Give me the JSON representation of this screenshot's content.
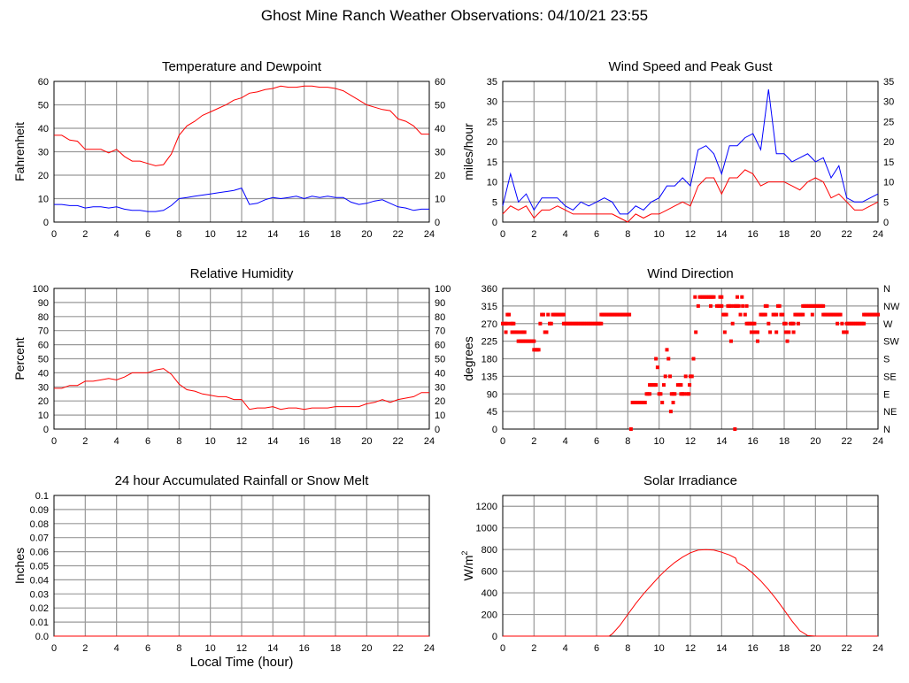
{
  "title": "Ghost Mine Ranch Weather Observations: 04/10/21 23:55",
  "x_axis_label": "Local Time (hour)",
  "colors": {
    "red": "#ff0000",
    "blue": "#0000ff",
    "grid": "#999999"
  },
  "chart_data": [
    {
      "id": "temp",
      "type": "line",
      "title": "Temperature and Dewpoint",
      "ylabel": "Fahrenheit",
      "xlim": [
        0,
        24
      ],
      "ylim": [
        0,
        60
      ],
      "xticks": [
        0,
        2,
        4,
        6,
        8,
        10,
        12,
        14,
        16,
        18,
        20,
        22,
        24
      ],
      "yticks": [
        0,
        10,
        20,
        30,
        40,
        50,
        60
      ],
      "right_ticks": [
        "0",
        "10",
        "20",
        "30",
        "40",
        "50",
        "60"
      ],
      "grid": true,
      "x": [
        0,
        0.5,
        1,
        1.5,
        2,
        2.5,
        3,
        3.5,
        4,
        4.5,
        5,
        5.5,
        6,
        6.5,
        7,
        7.5,
        8,
        8.5,
        9,
        9.5,
        10,
        10.5,
        11,
        11.5,
        12,
        12.5,
        13,
        13.5,
        14,
        14.5,
        15,
        15.5,
        16,
        16.5,
        17,
        17.5,
        18,
        18.5,
        19,
        19.5,
        20,
        20.5,
        21,
        21.5,
        22,
        22.5,
        23,
        23.5,
        24
      ],
      "series": [
        {
          "color": "#ff0000",
          "values": [
            37,
            37,
            35,
            34.5,
            31,
            31,
            31,
            29.5,
            31,
            28,
            26,
            26,
            25,
            24,
            24.5,
            29,
            37,
            41,
            43,
            45.5,
            47,
            48.5,
            50,
            52,
            53,
            55,
            55.5,
            56.5,
            57,
            58,
            57.5,
            57.5,
            58,
            58,
            57.5,
            57.5,
            57,
            56,
            54,
            52,
            50,
            49,
            48,
            47.5,
            44,
            43,
            41,
            37.5,
            37.5
          ]
        },
        {
          "color": "#0000ff",
          "values": [
            7.5,
            7.5,
            7,
            7,
            6,
            6.5,
            6.5,
            6,
            6.5,
            5.5,
            5,
            5,
            4.5,
            4.5,
            5,
            7,
            10,
            10.5,
            11,
            11.5,
            12,
            12.5,
            13,
            13.5,
            14.5,
            7.5,
            8,
            9.5,
            10.5,
            10,
            10.5,
            11,
            10,
            11,
            10.5,
            11,
            10.5,
            10.5,
            8.5,
            7.5,
            8,
            9,
            9.5,
            8,
            6.5,
            6,
            5,
            5.5,
            5.5
          ]
        }
      ]
    },
    {
      "id": "wind",
      "type": "line",
      "title": "Wind Speed and Peak Gust",
      "ylabel": "miles/hour",
      "xlim": [
        0,
        24
      ],
      "ylim": [
        0,
        35
      ],
      "xticks": [
        0,
        2,
        4,
        6,
        8,
        10,
        12,
        14,
        16,
        18,
        20,
        22,
        24
      ],
      "yticks": [
        0,
        5,
        10,
        15,
        20,
        25,
        30,
        35
      ],
      "right_ticks": [
        "0",
        "5",
        "10",
        "15",
        "20",
        "25",
        "30",
        "35"
      ],
      "grid": true,
      "x": [
        0,
        0.5,
        1,
        1.5,
        2,
        2.5,
        3,
        3.5,
        4,
        4.5,
        5,
        5.5,
        6,
        6.5,
        7,
        7.5,
        8,
        8.5,
        9,
        9.5,
        10,
        10.5,
        11,
        11.5,
        12,
        12.5,
        13,
        13.5,
        14,
        14.5,
        15,
        15.5,
        16,
        16.5,
        17,
        17.5,
        18,
        18.5,
        19,
        19.5,
        20,
        20.5,
        21,
        21.5,
        22,
        22.5,
        23,
        23.5,
        24
      ],
      "series": [
        {
          "color": "#0000ff",
          "values": [
            4,
            12,
            5,
            7,
            3,
            6,
            6,
            6,
            4,
            3,
            5,
            4,
            5,
            6,
            5,
            2,
            2,
            4,
            3,
            5,
            6,
            9,
            9,
            11,
            9,
            18,
            19,
            17,
            12,
            19,
            19,
            21,
            22,
            18,
            33,
            17,
            17,
            15,
            16,
            17,
            15,
            16,
            11,
            14,
            6,
            5,
            5,
            6,
            7
          ]
        },
        {
          "color": "#ff0000",
          "values": [
            2,
            4,
            3,
            4,
            1,
            3,
            3,
            4,
            3,
            2,
            2,
            2,
            2,
            2,
            2,
            1,
            0,
            2,
            1,
            2,
            2,
            3,
            4,
            5,
            4,
            9,
            11,
            11,
            7,
            11,
            11,
            13,
            12,
            9,
            10,
            10,
            10,
            9,
            8,
            10,
            11,
            10,
            6,
            7,
            5,
            3,
            3,
            4,
            5
          ]
        }
      ]
    },
    {
      "id": "rh",
      "type": "line",
      "title": "Relative Humidity",
      "ylabel": "Percent",
      "xlim": [
        0,
        24
      ],
      "ylim": [
        0,
        100
      ],
      "xticks": [
        0,
        2,
        4,
        6,
        8,
        10,
        12,
        14,
        16,
        18,
        20,
        22,
        24
      ],
      "yticks": [
        0,
        10,
        20,
        30,
        40,
        50,
        60,
        70,
        80,
        90,
        100
      ],
      "right_ticks": [
        "0",
        "10",
        "20",
        "30",
        "40",
        "50",
        "60",
        "70",
        "80",
        "90",
        "100"
      ],
      "grid": true,
      "x": [
        0,
        0.5,
        1,
        1.5,
        2,
        2.5,
        3,
        3.5,
        4,
        4.5,
        5,
        5.5,
        6,
        6.5,
        7,
        7.5,
        8,
        8.5,
        9,
        9.5,
        10,
        10.5,
        11,
        11.5,
        12,
        12.5,
        13,
        13.5,
        14,
        14.5,
        15,
        15.5,
        16,
        16.5,
        17,
        17.5,
        18,
        18.5,
        19,
        19.5,
        20,
        20.5,
        21,
        21.5,
        22,
        22.5,
        23,
        23.5,
        24
      ],
      "series": [
        {
          "color": "#ff0000",
          "values": [
            29,
            29,
            31,
            31,
            34,
            34,
            35,
            36,
            35,
            37,
            40,
            40,
            40,
            42,
            43,
            39,
            32,
            28,
            27,
            25,
            24,
            23,
            23,
            21,
            21,
            14,
            15,
            15,
            16,
            14,
            15,
            15,
            14,
            15,
            15,
            15,
            16,
            16,
            16,
            16,
            18,
            19,
            21,
            19,
            21,
            22,
            23,
            26,
            26
          ]
        }
      ]
    },
    {
      "id": "dir",
      "type": "scatter",
      "title": "Wind Direction",
      "ylabel": "degrees",
      "xlim": [
        0,
        24
      ],
      "ylim": [
        0,
        360
      ],
      "xticks": [
        0,
        2,
        4,
        6,
        8,
        10,
        12,
        14,
        16,
        18,
        20,
        22,
        24
      ],
      "yticks": [
        0,
        45,
        90,
        135,
        180,
        225,
        270,
        315,
        360
      ],
      "right_ticks": [
        "N",
        "NE",
        "E",
        "SE",
        "S",
        "SW",
        "W",
        "NW",
        "N"
      ],
      "grid": true,
      "color": "#ff0000",
      "runs": [
        [
          0,
          0.3,
          270
        ],
        [
          0.2,
          0.2,
          248
        ],
        [
          0.3,
          0.4,
          293
        ],
        [
          0.5,
          0.7,
          270
        ],
        [
          0.6,
          1.0,
          248
        ],
        [
          1.0,
          2.0,
          225
        ],
        [
          1.2,
          1.4,
          248
        ],
        [
          2.0,
          2.3,
          203
        ],
        [
          2.4,
          2.4,
          270
        ],
        [
          2.5,
          2.6,
          293
        ],
        [
          2.7,
          2.8,
          248
        ],
        [
          2.9,
          2.9,
          293
        ],
        [
          3.0,
          3.1,
          270
        ],
        [
          3.2,
          3.9,
          293
        ],
        [
          3.9,
          6.3,
          270
        ],
        [
          6.3,
          8.1,
          293
        ],
        [
          8.2,
          8.2,
          0
        ],
        [
          8.3,
          9.1,
          68
        ],
        [
          9.2,
          9.4,
          90
        ],
        [
          9.4,
          9.8,
          113
        ],
        [
          9.8,
          9.8,
          180
        ],
        [
          9.9,
          9.95,
          158
        ],
        [
          10.0,
          10.1,
          90
        ],
        [
          10.2,
          10.2,
          68
        ],
        [
          10.3,
          10.3,
          113
        ],
        [
          10.4,
          10.4,
          135
        ],
        [
          10.5,
          10.5,
          203
        ],
        [
          10.6,
          10.6,
          180
        ],
        [
          10.7,
          10.7,
          135
        ],
        [
          10.75,
          10.75,
          45
        ],
        [
          10.8,
          11.0,
          90
        ],
        [
          10.9,
          10.9,
          68
        ],
        [
          11.2,
          11.4,
          113
        ],
        [
          11.4,
          11.6,
          90
        ],
        [
          11.7,
          11.7,
          135
        ],
        [
          11.8,
          11.9,
          90
        ],
        [
          11.95,
          11.95,
          113
        ],
        [
          12.0,
          12.1,
          135
        ],
        [
          12.2,
          12.2,
          180
        ],
        [
          12.3,
          12.3,
          338
        ],
        [
          12.35,
          12.35,
          248
        ],
        [
          12.5,
          12.5,
          315
        ],
        [
          12.6,
          13.5,
          338
        ],
        [
          13.3,
          13.3,
          315
        ],
        [
          13.7,
          13.9,
          315
        ],
        [
          13.9,
          14.0,
          338
        ],
        [
          14.0,
          14.0,
          315
        ],
        [
          14.1,
          14.3,
          293
        ],
        [
          14.2,
          14.2,
          248
        ],
        [
          14.4,
          14.6,
          315
        ],
        [
          14.6,
          14.6,
          225
        ],
        [
          14.7,
          14.7,
          270
        ],
        [
          14.8,
          15.1,
          315
        ],
        [
          14.85,
          14.85,
          0
        ],
        [
          15.0,
          15.0,
          338
        ],
        [
          15.2,
          15.2,
          293
        ],
        [
          15.3,
          15.3,
          338
        ],
        [
          15.35,
          15.35,
          315
        ],
        [
          15.5,
          15.5,
          293
        ],
        [
          15.6,
          15.6,
          315
        ],
        [
          15.6,
          15.9,
          270
        ],
        [
          15.9,
          16.3,
          248
        ],
        [
          16.0,
          16.1,
          270
        ],
        [
          16.3,
          16.3,
          225
        ],
        [
          16.5,
          16.8,
          293
        ],
        [
          16.8,
          16.9,
          315
        ],
        [
          17.0,
          17.0,
          270
        ],
        [
          17.1,
          17.1,
          248
        ],
        [
          17.3,
          17.5,
          293
        ],
        [
          17.5,
          17.5,
          248
        ],
        [
          17.6,
          17.7,
          315
        ],
        [
          17.8,
          17.9,
          293
        ],
        [
          18.0,
          18.1,
          270
        ],
        [
          18.1,
          18.3,
          248
        ],
        [
          18.2,
          18.2,
          225
        ],
        [
          18.4,
          18.6,
          270
        ],
        [
          18.6,
          18.6,
          248
        ],
        [
          18.7,
          18.9,
          293
        ],
        [
          18.9,
          18.9,
          270
        ],
        [
          19.0,
          19.2,
          293
        ],
        [
          19.2,
          20.5,
          315
        ],
        [
          19.8,
          19.8,
          293
        ],
        [
          20.5,
          21.6,
          293
        ],
        [
          21.4,
          21.4,
          270
        ],
        [
          21.7,
          21.7,
          270
        ],
        [
          21.8,
          22.0,
          248
        ],
        [
          22.0,
          23.1,
          270
        ],
        [
          23.1,
          24,
          293
        ]
      ]
    },
    {
      "id": "rain",
      "type": "line",
      "title": "24 hour Accumulated Rainfall or Snow Melt",
      "ylabel": "Inches",
      "xlim": [
        0,
        24
      ],
      "ylim": [
        0,
        0.1
      ],
      "xticks": [
        0,
        2,
        4,
        6,
        8,
        10,
        12,
        14,
        16,
        18,
        20,
        22,
        24
      ],
      "yticks": [
        0,
        0.01,
        0.02,
        0.03,
        0.04,
        0.05,
        0.06,
        0.07,
        0.08,
        0.09,
        0.1
      ],
      "ytick_labels": [
        "0.0",
        "0.01",
        "0.02",
        "0.03",
        "0.04",
        "0.05",
        "0.06",
        "0.07",
        "0.08",
        "0.09",
        "0.1"
      ],
      "grid": true,
      "x": [
        0,
        24
      ],
      "series": [
        {
          "color": "#ff0000",
          "values": [
            0,
            0
          ]
        }
      ]
    },
    {
      "id": "solar",
      "type": "line",
      "title": "Solar Irradiance",
      "ylabel": "W/m",
      "ylabel_sup": "2",
      "xlim": [
        0,
        24
      ],
      "ylim": [
        0,
        1300
      ],
      "xticks": [
        0,
        2,
        4,
        6,
        8,
        10,
        12,
        14,
        16,
        18,
        20,
        22,
        24
      ],
      "yticks": [
        0,
        200,
        400,
        600,
        800,
        1000,
        1200
      ],
      "grid": true,
      "x": [
        0,
        6.8,
        7,
        7.5,
        8,
        8.5,
        9,
        9.5,
        10,
        10.5,
        11,
        11.5,
        12,
        12.5,
        13,
        13.5,
        14,
        14.5,
        14.9,
        15,
        15.5,
        16,
        16.5,
        17,
        17.5,
        18,
        18.5,
        19,
        19.5,
        20,
        24
      ],
      "series": [
        {
          "color": "#ff0000",
          "values": [
            0,
            0,
            20,
            100,
            200,
            300,
            390,
            470,
            550,
            620,
            680,
            730,
            770,
            795,
            800,
            795,
            775,
            750,
            720,
            680,
            640,
            580,
            510,
            430,
            340,
            240,
            140,
            50,
            5,
            0,
            0
          ]
        }
      ]
    }
  ]
}
